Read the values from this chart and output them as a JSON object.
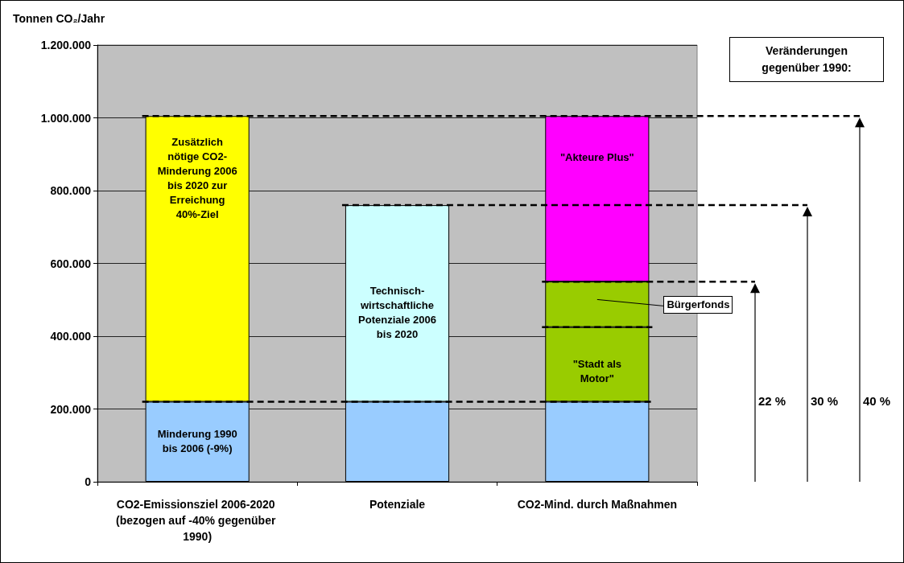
{
  "chart_data": {
    "type": "bar",
    "stacked": true,
    "ylabel": "Tonnen CO₂/Jahr",
    "categories": [
      "CO2-Emissionsziel 2006-2020 (bezogen auf -40% gegenüber 1990)",
      "Potenziale",
      "CO2-Mind. durch Maßnahmen"
    ],
    "series": [
      {
        "color": "#99ccff",
        "values": [
          220000,
          220000,
          220000
        ]
      },
      {
        "color": "#ffff00",
        "values": [
          785000,
          null,
          null
        ]
      },
      {
        "color": "#ccffff",
        "values": [
          null,
          540000,
          null
        ]
      },
      {
        "color": "#99cc00",
        "values": [
          null,
          null,
          205000
        ]
      },
      {
        "color": "#99cc00",
        "values": [
          null,
          null,
          125000
        ]
      },
      {
        "color": "#ff00ff",
        "values": [
          null,
          null,
          455000
        ]
      }
    ],
    "ylim": [
      0,
      1200000
    ],
    "yticks": [
      {
        "value": 0,
        "label": "0"
      },
      {
        "value": 200000,
        "label": "200.000"
      },
      {
        "value": 400000,
        "label": "400.000"
      },
      {
        "value": 600000,
        "label": "600.000"
      },
      {
        "value": 800000,
        "label": "800.000"
      },
      {
        "value": 1000000,
        "label": "1.000.000"
      },
      {
        "value": 1200000,
        "label": "1.200.000"
      }
    ],
    "grid": "y",
    "ref_lines": [
      {
        "axis": "y",
        "value": 220000,
        "color": "#000000",
        "line_style": "dashed"
      },
      {
        "axis": "y",
        "value": 425000,
        "color": "#000000",
        "line_style": "dashed"
      },
      {
        "axis": "y",
        "value": 550000,
        "color": "#000000",
        "line_style": "dashed"
      },
      {
        "axis": "y",
        "value": 760000,
        "color": "#000000",
        "line_style": "dashed"
      },
      {
        "axis": "y",
        "value": 1005000,
        "color": "#000000",
        "line_style": "dashed"
      }
    ],
    "annotations": [
      "Veränderungen gegenüber 1990:",
      "Minderung 1990 bis 2006 (-9%)",
      "Zusätzlich nötige CO2-Minderung 2006 bis 2020 zur Erreichung 40%-Ziel",
      "Technisch-wirtschaftliche Potenziale 2006 bis 2020",
      "\"Stadt als Motor\"",
      "Bürgerfonds",
      "\"Akteure Plus\"",
      "22 %",
      "30 %",
      "40 %"
    ]
  }
}
